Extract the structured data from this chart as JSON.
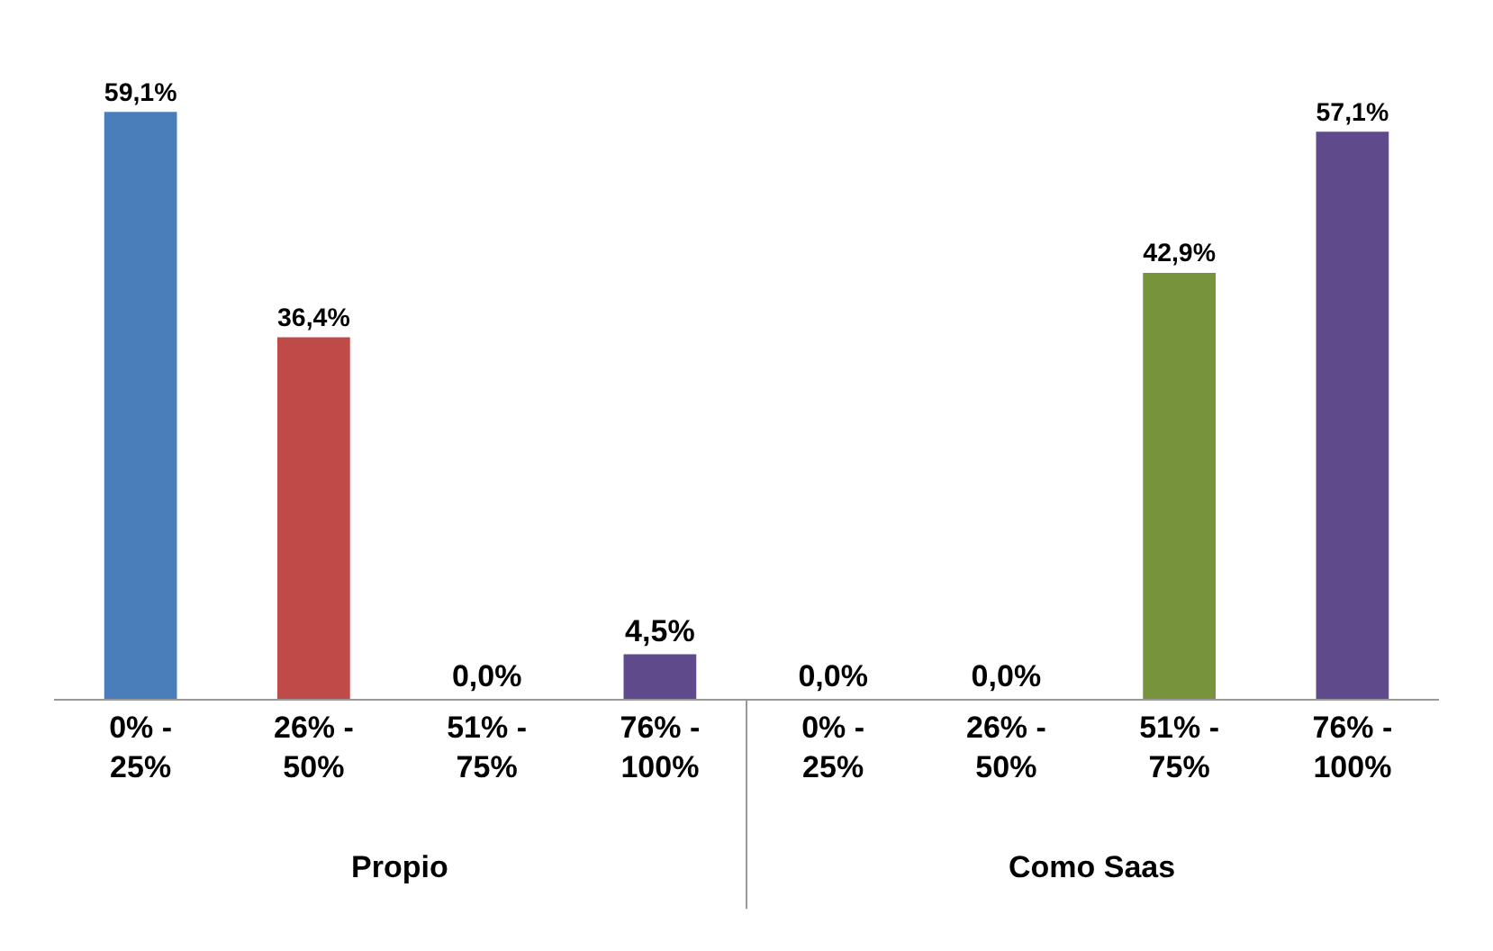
{
  "chart_data": {
    "type": "bar",
    "categories": [
      "0% - 25%",
      "26% - 50%",
      "51% - 75%",
      "76% - 100%",
      "0% - 25%",
      "26% - 50%",
      "51% - 75%",
      "76% - 100%"
    ],
    "values": [
      59.1,
      36.4,
      0.0,
      4.5,
      0.0,
      0.0,
      42.9,
      57.1
    ],
    "value_labels": [
      "59,1%",
      "36,4%",
      "0,0%",
      "4,5%",
      "0,0%",
      "0,0%",
      "42,9%",
      "57,1%"
    ],
    "colors": [
      "#4a7ebb",
      "#be4b48",
      "#77933c",
      "#5f4b8b",
      "#4a7ebb",
      "#be4b48",
      "#77933c",
      "#5f4b8b"
    ],
    "annotations": [
      "Propio",
      "Como Saas"
    ]
  }
}
